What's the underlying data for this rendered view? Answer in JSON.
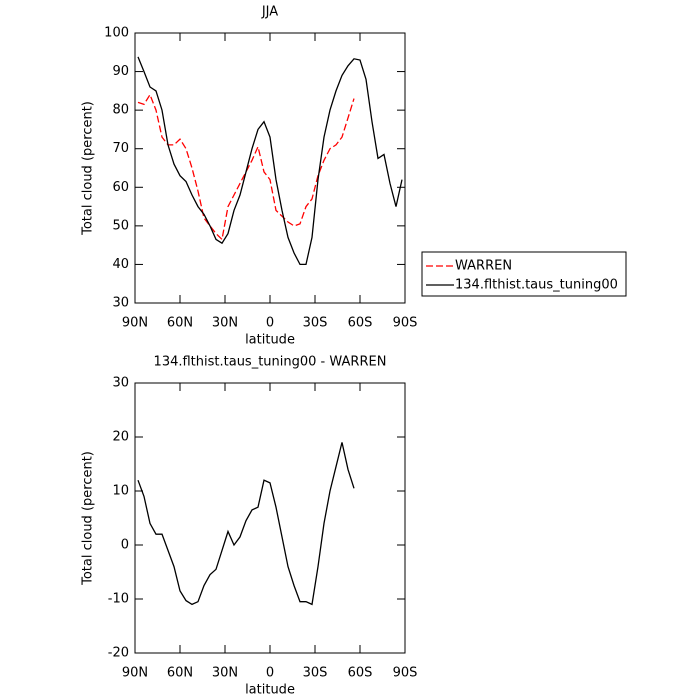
{
  "chart_data": [
    {
      "type": "line",
      "title": "JJA",
      "x_label": "latitude",
      "y_label": "Total cloud (percent)",
      "x": [
        88,
        84,
        80,
        76,
        72,
        68,
        64,
        60,
        56,
        52,
        48,
        44,
        40,
        36,
        32,
        28,
        24,
        20,
        16,
        12,
        8,
        4,
        0,
        -4,
        -8,
        -12,
        -16,
        -20,
        -24,
        -28,
        -32,
        -36,
        -40,
        -44,
        -48,
        -52,
        -56,
        -60,
        -64,
        -68,
        -72,
        -76,
        -80,
        -84,
        -88
      ],
      "xlim": [
        90,
        -90
      ],
      "xticks": [
        {
          "value": 90,
          "label": "90N"
        },
        {
          "value": 60,
          "label": "60N"
        },
        {
          "value": 30,
          "label": "30N"
        },
        0,
        {
          "value": -30,
          "label": "30S"
        },
        {
          "value": -60,
          "label": "60S"
        },
        {
          "value": -90,
          "label": "90S"
        }
      ],
      "ylim": [
        30,
        100
      ],
      "yticks": [
        30,
        40,
        50,
        60,
        70,
        80,
        90,
        100
      ],
      "legend": "right",
      "series": [
        {
          "name": "WARREN",
          "color": "#ff0000",
          "line_style": "dashed",
          "values": [
            82,
            81.5,
            84,
            80,
            73,
            71,
            71,
            72.5,
            70,
            65,
            59,
            52,
            50,
            48,
            46.5,
            55,
            58,
            61,
            64,
            67,
            70.5,
            64,
            62,
            54,
            52.5,
            51,
            50,
            50.5,
            55,
            57,
            63,
            67,
            70,
            71,
            73,
            78,
            83,
            null,
            null,
            null,
            null,
            null,
            null,
            null,
            null
          ]
        },
        {
          "name": "134.flthist.taus_tuning00",
          "color": "#000000",
          "line_style": "solid",
          "values": [
            93.8,
            90,
            86,
            85,
            80,
            71,
            66,
            63,
            61.5,
            58,
            55,
            53,
            50,
            46.5,
            45.5,
            48,
            54,
            58,
            64,
            70,
            75,
            77,
            73,
            62,
            54,
            47,
            43,
            40,
            40,
            47,
            62,
            73,
            80,
            85,
            89,
            91.5,
            93.3,
            93,
            88,
            77,
            67.5,
            68.5,
            61,
            55,
            62
          ]
        }
      ]
    },
    {
      "type": "line",
      "title": "134.flthist.taus_tuning00 - WARREN",
      "x_label": "latitude",
      "y_label": "Total cloud (percent)",
      "x": [
        88,
        84,
        80,
        76,
        72,
        68,
        64,
        60,
        56,
        52,
        48,
        44,
        40,
        36,
        32,
        28,
        24,
        20,
        16,
        12,
        8,
        4,
        0,
        -4,
        -8,
        -12,
        -16,
        -20,
        -24,
        -28,
        -32,
        -36,
        -40,
        -44,
        -48,
        -52,
        -56,
        -60,
        -64,
        -68,
        -72,
        -76,
        -80,
        -84,
        -88
      ],
      "xlim": [
        90,
        -90
      ],
      "xticks": [
        {
          "value": 90,
          "label": "90N"
        },
        {
          "value": 60,
          "label": "60N"
        },
        {
          "value": 30,
          "label": "30N"
        },
        0,
        {
          "value": -30,
          "label": "30S"
        },
        {
          "value": -60,
          "label": "60S"
        },
        {
          "value": -90,
          "label": "90S"
        }
      ],
      "ylim": [
        -20,
        30
      ],
      "yticks": [
        -20,
        -10,
        0,
        10,
        20,
        30
      ],
      "series": [
        {
          "color": "#000000",
          "line_style": "solid",
          "values": [
            12,
            9,
            4,
            2,
            2,
            -1,
            -4,
            -8.5,
            -10.3,
            -11,
            -10.5,
            -7.5,
            -5.5,
            -4.5,
            -1,
            2.5,
            0,
            1.5,
            4.5,
            6.5,
            7,
            12,
            11.5,
            7,
            1.5,
            -4,
            -7.5,
            -10.5,
            -10.5,
            -11,
            -4,
            4,
            10,
            14.5,
            19,
            14,
            10.5,
            null,
            null,
            null,
            null,
            null,
            null,
            null,
            null
          ]
        }
      ]
    }
  ]
}
